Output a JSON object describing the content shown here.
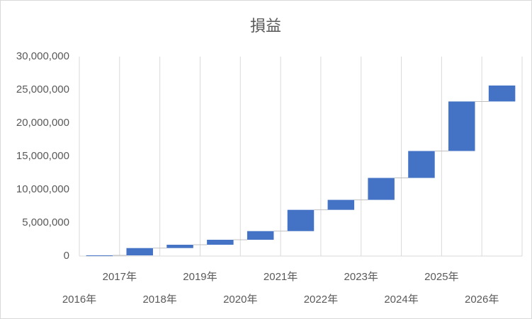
{
  "chart_data": {
    "type": "waterfall",
    "title": "損益",
    "categories": [
      "2016年",
      "2017年",
      "2018年",
      "2019年",
      "2020年",
      "2021年",
      "2022年",
      "2023年",
      "2024年",
      "2025年",
      "2026年"
    ],
    "values": [
      100000,
      1100000,
      500000,
      750000,
      1300000,
      3200000,
      1500000,
      3300000,
      4050000,
      7450000,
      2400000
    ],
    "color": "#4472c4",
    "ylim": [
      0,
      30000000
    ],
    "yticks": [
      0,
      {
        "value": 5000000,
        "label": "5,000,000"
      },
      {
        "value": 10000000,
        "label": "10,000,000"
      },
      {
        "value": 15000000,
        "label": "15,000,000"
      },
      {
        "value": 20000000,
        "label": "20,000,000"
      },
      {
        "value": 25000000,
        "label": "25,000,000"
      },
      {
        "value": 30000000,
        "label": "30,000,000"
      }
    ],
    "grid": true
  }
}
